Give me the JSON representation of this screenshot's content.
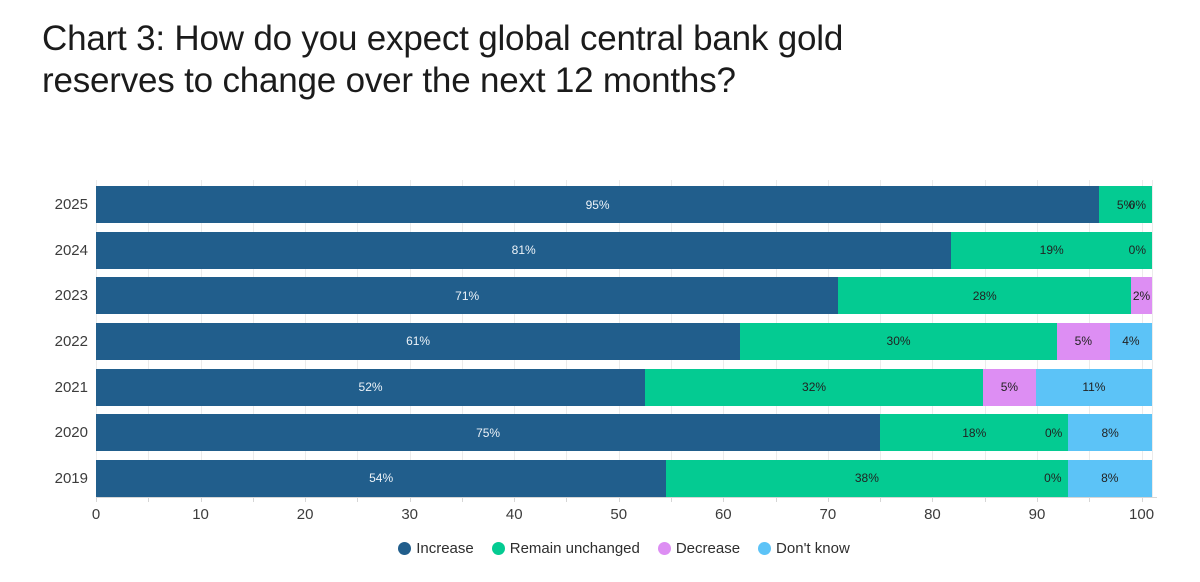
{
  "title": "Chart 3: How do you expect global central bank gold\nreserves to change over the next 12 months?",
  "chart_data": {
    "type": "bar",
    "orientation": "horizontal",
    "stacked": true,
    "normalized_rows": true,
    "title": "Chart 3: How do you expect global central bank gold reserves to change over the next 12 months?",
    "xlabel": "",
    "ylabel": "",
    "categories": [
      "2025",
      "2024",
      "2023",
      "2022",
      "2021",
      "2020",
      "2019"
    ],
    "series": [
      {
        "name": "Increase",
        "color": "#215E8C",
        "label_color": "#EDF3F8",
        "values": [
          95,
          81,
          71,
          61,
          52,
          75,
          54
        ],
        "label_visible": [
          true,
          true,
          true,
          true,
          true,
          true,
          true
        ]
      },
      {
        "name": "Remain unchanged",
        "color": "#04CB92",
        "label_color": "#222222",
        "values": [
          5,
          19,
          28,
          30,
          32,
          18,
          38
        ],
        "label_visible": [
          true,
          true,
          true,
          true,
          true,
          true,
          true
        ]
      },
      {
        "name": "Decrease",
        "color": "#DD8EF3",
        "label_color": "#222222",
        "values": [
          0,
          0,
          2,
          5,
          5,
          0,
          0
        ],
        "label_visible": [
          true,
          true,
          true,
          true,
          true,
          true,
          true
        ]
      },
      {
        "name": "Don't know",
        "color": "#5CC3F7",
        "label_color": "#222222",
        "values": [
          0,
          0,
          0,
          4,
          11,
          8,
          8
        ],
        "label_visible": [
          false,
          false,
          false,
          true,
          true,
          true,
          true
        ]
      }
    ],
    "value_suffix": "%",
    "xlim": [
      0,
      101
    ],
    "x_ticks": [
      0,
      10,
      20,
      30,
      40,
      50,
      60,
      70,
      80,
      90,
      100
    ],
    "grid": "vertical minor every 5 units",
    "legend_position": "bottom"
  },
  "colors": {
    "gridline": "#ebebeb",
    "axis": "#d6d6d6",
    "title_text": "#1b1b1b",
    "tick_text": "#3c3c3c"
  }
}
